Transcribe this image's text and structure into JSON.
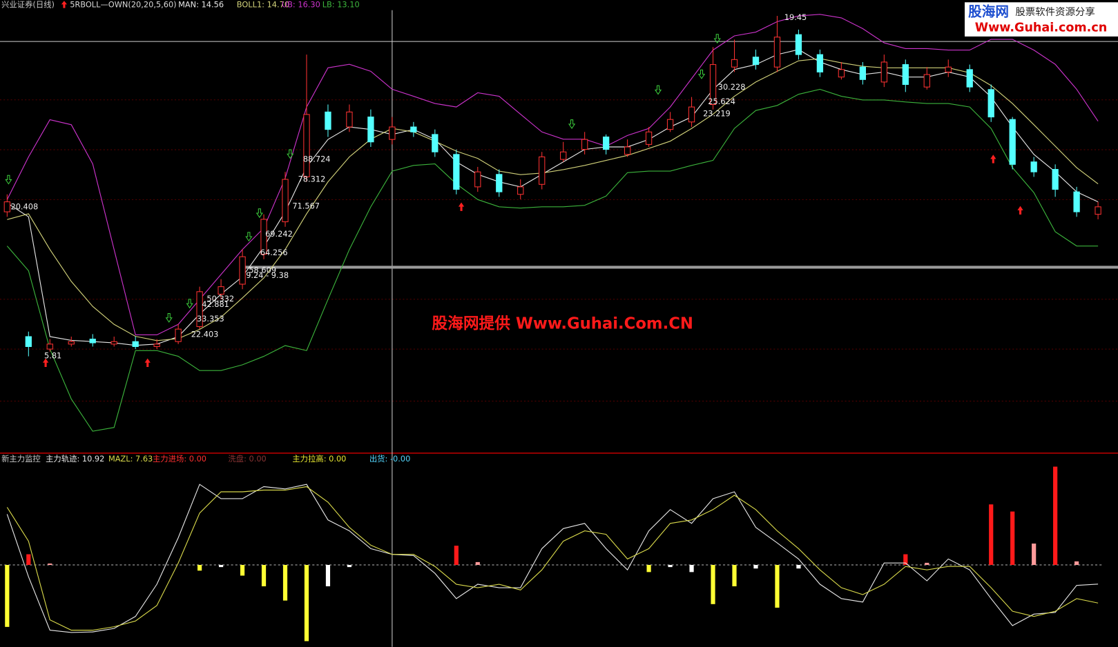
{
  "chart_data": [
    {
      "type": "candlestick",
      "title": "兴业证券(日线)",
      "subtitle": "5RBOLL—OWN(20,20,5,60)",
      "up_color": "#ff3232",
      "down_color": "#54ffff",
      "open": [
        11.6,
        6.6,
        6.1,
        6.3,
        6.5,
        6.3,
        6.4,
        6.2,
        6.4,
        7.0,
        8.3,
        8.7,
        9.9,
        11.2,
        13.0,
        15.6,
        15.0,
        15.4,
        14.5,
        15.0,
        14.7,
        13.9,
        12.6,
        13.1,
        12.3,
        12.7,
        13.7,
        14.1,
        14.6,
        13.9,
        14.3,
        14.9,
        15.2,
        15.9,
        17.4,
        17.8,
        17.4,
        18.7,
        17.9,
        17.0,
        17.4,
        16.8,
        17.5,
        16.6,
        17.2,
        17.3,
        16.5,
        15.3,
        13.6,
        13.3,
        12.4,
        11.5
      ],
      "high": [
        12.3,
        6.8,
        6.5,
        6.6,
        6.7,
        6.6,
        6.6,
        6.5,
        7.1,
        8.6,
        8.9,
        10.1,
        11.5,
        13.2,
        17.9,
        15.9,
        15.9,
        15.7,
        15.4,
        15.2,
        14.9,
        14.1,
        13.4,
        13.3,
        12.9,
        14.0,
        14.4,
        14.8,
        14.7,
        14.5,
        15.0,
        15.6,
        16.2,
        18.2,
        18.5,
        18.1,
        19.45,
        18.9,
        18.1,
        17.6,
        17.6,
        17.9,
        17.7,
        17.4,
        17.7,
        17.5,
        16.7,
        15.4,
        13.8,
        13.5,
        12.6,
        12.0
      ],
      "low": [
        11.4,
        5.81,
        6.0,
        6.2,
        6.2,
        6.2,
        6.1,
        6.1,
        6.3,
        6.9,
        8.1,
        8.5,
        9.7,
        11.0,
        12.8,
        14.6,
        14.8,
        14.2,
        14.3,
        14.6,
        13.8,
        12.3,
        12.4,
        12.2,
        12.1,
        12.5,
        13.6,
        13.9,
        13.9,
        13.8,
        14.2,
        14.8,
        15.0,
        15.7,
        17.2,
        17.3,
        17.2,
        17.7,
        17.0,
        16.9,
        16.7,
        16.6,
        16.4,
        16.5,
        17.0,
        16.4,
        15.2,
        13.3,
        13.0,
        12.2,
        11.4,
        11.3
      ],
      "close": [
        12.0,
        6.2,
        6.3,
        6.4,
        6.35,
        6.4,
        6.2,
        6.3,
        6.9,
        8.4,
        8.6,
        9.8,
        11.3,
        12.9,
        15.5,
        14.9,
        15.6,
        14.4,
        15.0,
        14.8,
        14.0,
        12.5,
        13.2,
        12.4,
        12.6,
        13.8,
        14.0,
        14.5,
        14.1,
        14.2,
        14.8,
        15.3,
        15.8,
        17.5,
        17.7,
        17.5,
        18.6,
        17.9,
        17.2,
        17.3,
        16.9,
        17.6,
        16.7,
        17.1,
        17.4,
        16.6,
        15.4,
        13.5,
        13.2,
        12.5,
        11.6,
        11.8
      ],
      "series": [
        {
          "name": "MAN: 14.56",
          "color": "#e6e6e6",
          "values": [
            11.95,
            11.4,
            6.6,
            6.45,
            6.4,
            6.35,
            6.25,
            6.3,
            6.6,
            7.5,
            8.3,
            9.0,
            10.2,
            11.6,
            13.4,
            14.5,
            15.0,
            14.9,
            14.7,
            14.9,
            14.5,
            13.6,
            13.1,
            12.8,
            12.6,
            13.1,
            13.6,
            14.1,
            14.2,
            14.2,
            14.5,
            15.0,
            15.4,
            16.5,
            17.3,
            17.5,
            17.9,
            18.1,
            17.6,
            17.3,
            17.1,
            17.2,
            17.0,
            17.0,
            17.2,
            17.0,
            16.2,
            15.0,
            13.9,
            13.2,
            12.4,
            12.0
          ]
        },
        {
          "name": "BOLL1: 14.70",
          "color": "#d2d27a",
          "values": [
            11.29,
            11.52,
            10.09,
            8.81,
            7.81,
            7.09,
            6.61,
            6.44,
            6.52,
            6.89,
            7.38,
            8.15,
            8.95,
            10.09,
            11.52,
            12.8,
            13.8,
            14.51,
            14.94,
            14.8,
            14.43,
            14.03,
            13.74,
            13.23,
            13.09,
            13.15,
            13.29,
            13.46,
            13.66,
            13.86,
            14.14,
            14.43,
            14.94,
            15.51,
            16.23,
            16.8,
            17.23,
            17.65,
            17.74,
            17.57,
            17.43,
            17.37,
            17.37,
            17.37,
            17.37,
            17.17,
            16.66,
            15.94,
            15.09,
            14.23,
            13.37,
            12.72
          ]
        },
        {
          "name": "UB: 16.30",
          "color": "#cc33cc",
          "values": [
            12.09,
            13.8,
            15.29,
            15.09,
            13.52,
            10.09,
            6.67,
            6.67,
            7.09,
            8.09,
            9.09,
            10.09,
            10.95,
            12.95,
            15.8,
            17.37,
            17.51,
            17.23,
            16.51,
            16.23,
            15.94,
            15.8,
            16.37,
            16.23,
            15.51,
            14.8,
            14.51,
            14.51,
            14.23,
            14.66,
            14.94,
            15.8,
            16.94,
            18.08,
            18.65,
            18.8,
            19.22,
            19.45,
            19.51,
            19.37,
            18.94,
            18.37,
            18.14,
            18.14,
            18.08,
            18.08,
            18.51,
            18.51,
            18.08,
            17.51,
            16.51,
            15.23
          ]
        },
        {
          "name": "LB: 13.10",
          "color": "#3cb43c",
          "values": [
            10.23,
            9.24,
            6.1,
            4.1,
            2.81,
            2.96,
            6.04,
            6.04,
            5.81,
            5.24,
            5.24,
            5.47,
            5.81,
            6.24,
            6.04,
            8.09,
            10.09,
            11.8,
            13.23,
            13.46,
            13.52,
            12.72,
            12.09,
            11.8,
            11.75,
            11.8,
            11.8,
            11.86,
            12.23,
            13.17,
            13.23,
            13.23,
            13.46,
            13.66,
            14.94,
            15.66,
            15.86,
            16.31,
            16.51,
            16.23,
            16.08,
            16.08,
            16.0,
            15.94,
            15.94,
            15.8,
            14.94,
            13.37,
            12.37,
            10.8,
            10.23,
            10.23
          ]
        }
      ],
      "ylim": [
        1.96,
        20.08
      ],
      "annotations": [
        "20.408",
        "5.81",
        "22.403",
        "33.353",
        "42.881",
        "50.332",
        "58.609",
        "9.24 - 9.38",
        "64.256",
        "69.242",
        "71.567",
        "78.312",
        "88.724",
        "30.228",
        "25.624",
        "23.219",
        "19.45"
      ]
    },
    {
      "type": "line",
      "title": "新主力监控",
      "series": [
        {
          "name": "主力轨迹: 10.92",
          "color": "#e6e6e6",
          "values": [
            23.1,
            12.2,
            2.9,
            2.5,
            2.6,
            3.2,
            5.3,
            10.9,
            19.0,
            28.3,
            25.8,
            25.8,
            27.9,
            27.5,
            28.3,
            22.1,
            20.2,
            17.1,
            16.1,
            15.9,
            12.8,
            8.4,
            10.9,
            10.3,
            10.3,
            17.1,
            20.6,
            21.5,
            17.1,
            13.4,
            20.2,
            23.9,
            21.5,
            25.8,
            27.0,
            20.8,
            18.1,
            15.3,
            10.9,
            8.4,
            7.8,
            14.6,
            14.6,
            11.5,
            15.3,
            13.4,
            8.4,
            3.7,
            5.7,
            6.0,
            10.7,
            10.92
          ]
        },
        {
          "name": "MAZL: 7.63",
          "color": "#d8d84a",
          "values": [
            24.3,
            18.4,
            4.7,
            2.9,
            2.9,
            3.5,
            4.5,
            7.2,
            14.6,
            23.3,
            27.0,
            27.0,
            27.3,
            27.3,
            27.9,
            25.2,
            20.8,
            17.7,
            16.1,
            16.1,
            14.0,
            10.9,
            10.3,
            10.9,
            9.9,
            13.4,
            18.4,
            20.2,
            19.6,
            15.3,
            17.1,
            21.5,
            22.1,
            23.9,
            26.4,
            23.9,
            20.2,
            17.1,
            13.4,
            10.3,
            9.1,
            10.9,
            14.0,
            13.4,
            14.0,
            14.0,
            10.3,
            6.2,
            5.3,
            6.2,
            8.4,
            7.63
          ]
        }
      ],
      "ylim": [
        0,
        32
      ],
      "histogram": {
        "axis": "y2",
        "values": [
          -8.7,
          1.5,
          0.2,
          null,
          null,
          null,
          null,
          null,
          null,
          -0.8,
          -0.3,
          -1.5,
          -3,
          -5,
          -10.7,
          -3,
          -0.3,
          null,
          null,
          null,
          null,
          2.7,
          0.4,
          null,
          null,
          null,
          null,
          null,
          null,
          null,
          -1,
          -0.3,
          -1,
          -5.5,
          -3,
          -0.5,
          -6,
          -0.5,
          null,
          null,
          null,
          null,
          1.5,
          0.3,
          null,
          null,
          8.5,
          7.5,
          3,
          13.8,
          0.5,
          null
        ],
        "colors": [
          "#ffff33",
          "#ff1a1a",
          "#ff9a9a",
          null,
          null,
          null,
          null,
          null,
          null,
          "#ffff33",
          "#ffffff",
          "#ffff33",
          "#ffff33",
          "#ffff33",
          "#ffff33",
          "#ffffff",
          "#ffffff",
          null,
          null,
          null,
          null,
          "#ff1a1a",
          "#ff9a9a",
          null,
          null,
          null,
          null,
          null,
          null,
          null,
          "#ffff33",
          "#ffffff",
          "#ffffff",
          "#ffff33",
          "#ffff33",
          "#ffffff",
          "#ffff33",
          "#ffffff",
          null,
          null,
          null,
          null,
          "#ff1a1a",
          "#ff9a9a",
          null,
          null,
          "#ff1a1a",
          "#ff1a1a",
          "#ff9a9a",
          "#ff1a1a",
          "#ff9a9a",
          null
        ]
      },
      "y2lim": [
        -11.5,
        14.3
      ],
      "legend": [
        {
          "text": "主力进场: 0.00",
          "color": "#ff3030"
        },
        {
          "text": "洗盘: 0.00",
          "color": "#8a3434"
        },
        {
          "text": "主力拉高: 0.00",
          "color": "#e8e830"
        },
        {
          "text": "出货: -0.00",
          "color": "#54d8ff"
        }
      ]
    }
  ],
  "watermark": {
    "brand": "股海网",
    "tagline": "股票软件资源分享",
    "url": "Www.Guhai.com.cn"
  },
  "caption": "股海网提供 Www.Guhai.Com.CN"
}
